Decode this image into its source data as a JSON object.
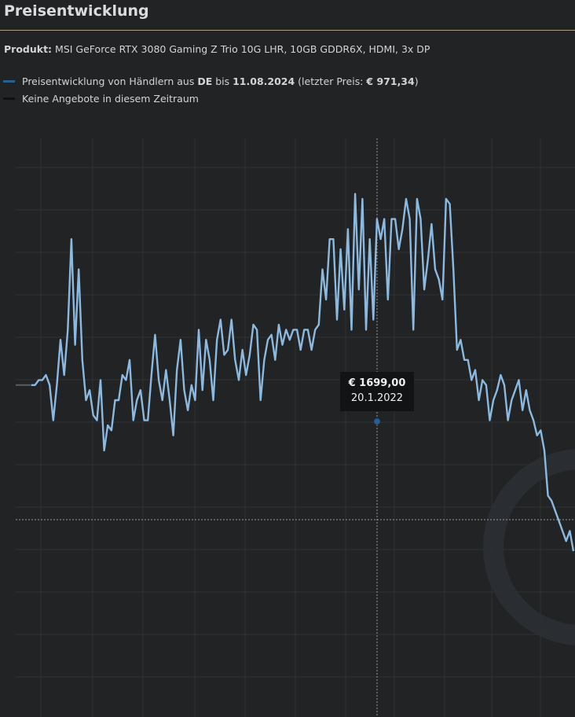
{
  "header": {
    "title": "Preisentwicklung"
  },
  "product": {
    "label": "Produkt:",
    "name": "MSI GeForce RTX 3080 Gaming Z Trio 10G LHR, 10GB GDDR6X, HDMI, 3x DP"
  },
  "legend": {
    "series_prefix": "Preisentwicklung von Händlern aus ",
    "country": "DE",
    "until_word": " bis ",
    "until_date": "11.08.2024",
    "last_price_prefix": " (letzter Preis: ",
    "last_price": "€ 971,34",
    "last_price_suffix": ")",
    "no_offers": "Keine Angebote in diesem Zeitraum",
    "series_color": "#2a5f93",
    "no_offers_color": "#111111"
  },
  "tooltip": {
    "price": "€ 1699,00",
    "date": "20.1.2022"
  },
  "colors": {
    "line": "#8cb9e0",
    "background": "#222325",
    "grid": "#2f3134",
    "crosshair": "#9a9a9a"
  },
  "chart_data": {
    "type": "line",
    "grid": true,
    "series": [
      {
        "values": [
          1330,
          1330,
          1340,
          1340,
          1350,
          1330,
          1260,
          1330,
          1420,
          1350,
          1440,
          1620,
          1410,
          1560,
          1380,
          1300,
          1320,
          1270,
          1260,
          1340,
          1200,
          1250,
          1240,
          1300,
          1300,
          1350,
          1340,
          1380,
          1260,
          1300,
          1320,
          1260,
          1260,
          1350,
          1430,
          1340,
          1300,
          1360,
          1300,
          1230,
          1360,
          1420,
          1320,
          1280,
          1330,
          1300,
          1440,
          1320,
          1420,
          1380,
          1300,
          1420,
          1460,
          1390,
          1400,
          1460,
          1380,
          1340,
          1400,
          1350,
          1390,
          1450,
          1440,
          1300,
          1380,
          1420,
          1430,
          1380,
          1450,
          1410,
          1440,
          1420,
          1440,
          1440,
          1400,
          1440,
          1440,
          1400,
          1440,
          1450,
          1560,
          1500,
          1620,
          1620,
          1460,
          1600,
          1480,
          1640,
          1440,
          1710,
          1520,
          1700,
          1440,
          1620,
          1460,
          1660,
          1620,
          1660,
          1500,
          1660,
          1660,
          1600,
          1640,
          1700,
          1660,
          1440,
          1700,
          1660,
          1520,
          1580,
          1650,
          1560,
          1540,
          1500,
          1700,
          1690,
          1560,
          1400,
          1420,
          1380,
          1380,
          1340,
          1360,
          1300,
          1340,
          1330,
          1260,
          1300,
          1320,
          1350,
          1330,
          1260,
          1300,
          1320,
          1340,
          1280,
          1320,
          1280,
          1260,
          1230,
          1240,
          1200,
          1110,
          1100,
          1080,
          1060,
          1040,
          1020,
          1040,
          1000
        ]
      }
    ]
  }
}
